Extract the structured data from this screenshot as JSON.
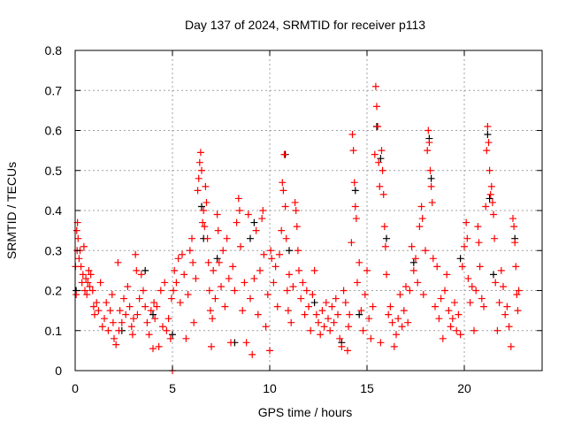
{
  "chart_data": {
    "type": "scatter",
    "title": "Day 137 of 2024, SRMTID for receiver p113",
    "xlabel": "GPS time / hours",
    "ylabel": "SRMTID / TECUs",
    "xlim": [
      0,
      24
    ],
    "ylim": [
      0,
      0.8
    ],
    "xticks": [
      0,
      5,
      10,
      15,
      20
    ],
    "yticks": [
      0,
      0.1,
      0.2,
      0.3,
      0.4,
      0.5,
      0.6,
      0.7,
      0.8
    ],
    "xtick_labels": [
      "0",
      "5",
      "10",
      "15",
      "20"
    ],
    "ytick_labels": [
      "0",
      "0.1",
      "0.2",
      "0.3",
      "0.4",
      "0.5",
      "0.6",
      "0.7",
      "0.8"
    ],
    "grid": true,
    "marker": "+",
    "series": [
      {
        "name": "black",
        "color": "#000000",
        "points": [
          [
            0.05,
            0.2
          ],
          [
            2.4,
            0.1
          ],
          [
            3.6,
            0.25
          ],
          [
            4.0,
            0.14
          ],
          [
            5.0,
            0.09
          ],
          [
            6.5,
            0.41
          ],
          [
            6.6,
            0.33
          ],
          [
            7.3,
            0.28
          ],
          [
            8.2,
            0.07
          ],
          [
            9.0,
            0.33
          ],
          [
            9.2,
            0.37
          ],
          [
            10.8,
            0.54
          ],
          [
            11.0,
            0.3
          ],
          [
            12.3,
            0.17
          ],
          [
            13.7,
            0.07
          ],
          [
            14.4,
            0.45
          ],
          [
            14.6,
            0.14
          ],
          [
            15.5,
            0.61
          ],
          [
            15.7,
            0.53
          ],
          [
            16.0,
            0.33
          ],
          [
            17.4,
            0.27
          ],
          [
            18.2,
            0.58
          ],
          [
            18.3,
            0.48
          ],
          [
            19.8,
            0.28
          ],
          [
            21.2,
            0.59
          ],
          [
            21.3,
            0.43
          ],
          [
            21.5,
            0.24
          ],
          [
            22.6,
            0.33
          ]
        ]
      },
      {
        "name": "red",
        "color": "#ff0000",
        "points": [
          [
            0.02,
            0.26
          ],
          [
            0.05,
            0.19
          ],
          [
            0.08,
            0.35
          ],
          [
            0.1,
            0.3
          ],
          [
            0.12,
            0.37
          ],
          [
            0.15,
            0.33
          ],
          [
            0.2,
            0.28
          ],
          [
            0.25,
            0.3
          ],
          [
            0.3,
            0.26
          ],
          [
            0.35,
            0.22
          ],
          [
            0.4,
            0.24
          ],
          [
            0.45,
            0.31
          ],
          [
            0.5,
            0.2
          ],
          [
            0.55,
            0.23
          ],
          [
            0.6,
            0.19
          ],
          [
            0.65,
            0.22
          ],
          [
            0.7,
            0.25
          ],
          [
            0.75,
            0.21
          ],
          [
            0.8,
            0.24
          ],
          [
            0.9,
            0.2
          ],
          [
            0.95,
            0.16
          ],
          [
            1.0,
            0.14
          ],
          [
            1.1,
            0.17
          ],
          [
            1.2,
            0.15
          ],
          [
            1.3,
            0.22
          ],
          [
            1.4,
            0.11
          ],
          [
            1.5,
            0.13
          ],
          [
            1.6,
            0.17
          ],
          [
            1.7,
            0.1
          ],
          [
            1.8,
            0.15
          ],
          [
            1.9,
            0.19
          ],
          [
            1.95,
            0.12
          ],
          [
            2.0,
            0.08
          ],
          [
            2.1,
            0.065
          ],
          [
            2.2,
            0.27
          ],
          [
            2.25,
            0.1
          ],
          [
            2.3,
            0.15
          ],
          [
            2.4,
            0.12
          ],
          [
            2.5,
            0.18
          ],
          [
            2.6,
            0.14
          ],
          [
            2.7,
            0.21
          ],
          [
            2.8,
            0.16
          ],
          [
            2.9,
            0.11
          ],
          [
            2.95,
            0.09
          ],
          [
            3.0,
            0.13
          ],
          [
            3.1,
            0.29
          ],
          [
            3.15,
            0.25
          ],
          [
            3.2,
            0.14
          ],
          [
            3.3,
            0.18
          ],
          [
            3.4,
            0.24
          ],
          [
            3.5,
            0.2
          ],
          [
            3.6,
            0.16
          ],
          [
            3.7,
            0.12
          ],
          [
            3.8,
            0.09
          ],
          [
            3.9,
            0.15
          ],
          [
            4.0,
            0.055
          ],
          [
            4.05,
            0.17
          ],
          [
            4.1,
            0.13
          ],
          [
            4.2,
            0.16
          ],
          [
            4.3,
            0.06
          ],
          [
            4.4,
            0.2
          ],
          [
            4.5,
            0.11
          ],
          [
            4.6,
            0.22
          ],
          [
            4.7,
            0.1
          ],
          [
            4.8,
            0.13
          ],
          [
            4.9,
            0.08
          ],
          [
            4.95,
            0.18
          ],
          [
            5.0,
            0.0
          ],
          [
            5.05,
            0.2
          ],
          [
            5.1,
            0.25
          ],
          [
            5.2,
            0.22
          ],
          [
            5.3,
            0.28
          ],
          [
            5.4,
            0.17
          ],
          [
            5.5,
            0.29
          ],
          [
            5.6,
            0.24
          ],
          [
            5.7,
            0.08
          ],
          [
            5.8,
            0.19
          ],
          [
            5.9,
            0.3
          ],
          [
            6.0,
            0.33
          ],
          [
            6.05,
            0.27
          ],
          [
            6.1,
            0.12
          ],
          [
            6.2,
            0.23
          ],
          [
            6.3,
            0.45
          ],
          [
            6.35,
            0.48
          ],
          [
            6.4,
            0.52
          ],
          [
            6.45,
            0.545
          ],
          [
            6.5,
            0.5
          ],
          [
            6.55,
            0.37
          ],
          [
            6.6,
            0.4
          ],
          [
            6.65,
            0.36
          ],
          [
            6.7,
            0.46
          ],
          [
            6.75,
            0.42
          ],
          [
            6.8,
            0.33
          ],
          [
            6.85,
            0.27
          ],
          [
            6.9,
            0.2
          ],
          [
            6.95,
            0.15
          ],
          [
            7.0,
            0.06
          ],
          [
            7.05,
            0.13
          ],
          [
            7.1,
            0.25
          ],
          [
            7.2,
            0.18
          ],
          [
            7.3,
            0.39
          ],
          [
            7.35,
            0.35
          ],
          [
            7.4,
            0.27
          ],
          [
            7.5,
            0.21
          ],
          [
            7.6,
            0.3
          ],
          [
            7.7,
            0.16
          ],
          [
            7.8,
            0.33
          ],
          [
            7.9,
            0.23
          ],
          [
            8.0,
            0.07
          ],
          [
            8.1,
            0.26
          ],
          [
            8.2,
            0.2
          ],
          [
            8.3,
            0.37
          ],
          [
            8.4,
            0.43
          ],
          [
            8.45,
            0.4
          ],
          [
            8.5,
            0.31
          ],
          [
            8.6,
            0.15
          ],
          [
            8.7,
            0.22
          ],
          [
            8.8,
            0.07
          ],
          [
            8.9,
            0.39
          ],
          [
            9.0,
            0.18
          ],
          [
            9.1,
            0.04
          ],
          [
            9.2,
            0.23
          ],
          [
            9.3,
            0.35
          ],
          [
            9.4,
            0.14
          ],
          [
            9.5,
            0.25
          ],
          [
            9.6,
            0.38
          ],
          [
            9.65,
            0.4
          ],
          [
            9.7,
            0.29
          ],
          [
            9.8,
            0.11
          ],
          [
            9.9,
            0.19
          ],
          [
            10.0,
            0.05
          ],
          [
            10.05,
            0.3
          ],
          [
            10.1,
            0.28
          ],
          [
            10.2,
            0.22
          ],
          [
            10.3,
            0.26
          ],
          [
            10.4,
            0.16
          ],
          [
            10.5,
            0.29
          ],
          [
            10.6,
            0.35
          ],
          [
            10.65,
            0.47
          ],
          [
            10.7,
            0.45
          ],
          [
            10.75,
            0.54
          ],
          [
            10.8,
            0.41
          ],
          [
            10.85,
            0.33
          ],
          [
            10.9,
            0.2
          ],
          [
            10.95,
            0.15
          ],
          [
            11.0,
            0.24
          ],
          [
            11.1,
            0.12
          ],
          [
            11.2,
            0.21
          ],
          [
            11.3,
            0.42
          ],
          [
            11.35,
            0.4
          ],
          [
            11.4,
            0.36
          ],
          [
            11.45,
            0.3
          ],
          [
            11.5,
            0.25
          ],
          [
            11.6,
            0.18
          ],
          [
            11.7,
            0.22
          ],
          [
            11.8,
            0.14
          ],
          [
            11.9,
            0.2
          ],
          [
            12.0,
            0.16
          ],
          [
            12.1,
            0.1
          ],
          [
            12.2,
            0.19
          ],
          [
            12.3,
            0.25
          ],
          [
            12.4,
            0.14
          ],
          [
            12.5,
            0.12
          ],
          [
            12.6,
            0.09
          ],
          [
            12.7,
            0.15
          ],
          [
            12.8,
            0.11
          ],
          [
            12.9,
            0.17
          ],
          [
            13.0,
            0.13
          ],
          [
            13.1,
            0.1
          ],
          [
            13.2,
            0.16
          ],
          [
            13.3,
            0.12
          ],
          [
            13.4,
            0.18
          ],
          [
            13.5,
            0.14
          ],
          [
            13.6,
            0.08
          ],
          [
            13.7,
            0.06
          ],
          [
            13.8,
            0.2
          ],
          [
            13.9,
            0.17
          ],
          [
            14.0,
            0.05
          ],
          [
            14.05,
            0.11
          ],
          [
            14.1,
            0.14
          ],
          [
            14.2,
            0.32
          ],
          [
            14.25,
            0.59
          ],
          [
            14.3,
            0.55
          ],
          [
            14.35,
            0.47
          ],
          [
            14.4,
            0.41
          ],
          [
            14.45,
            0.38
          ],
          [
            14.5,
            0.22
          ],
          [
            14.6,
            0.27
          ],
          [
            14.7,
            0.15
          ],
          [
            14.8,
            0.1
          ],
          [
            14.9,
            0.19
          ],
          [
            15.0,
            0.25
          ],
          [
            15.1,
            0.13
          ],
          [
            15.2,
            0.08
          ],
          [
            15.3,
            0.16
          ],
          [
            15.4,
            0.54
          ],
          [
            15.45,
            0.71
          ],
          [
            15.5,
            0.66
          ],
          [
            15.55,
            0.61
          ],
          [
            15.6,
            0.52
          ],
          [
            15.65,
            0.46
          ],
          [
            15.7,
            0.07
          ],
          [
            15.75,
            0.55
          ],
          [
            15.8,
            0.5
          ],
          [
            15.85,
            0.44
          ],
          [
            15.9,
            0.36
          ],
          [
            15.95,
            0.31
          ],
          [
            16.0,
            0.24
          ],
          [
            16.1,
            0.14
          ],
          [
            16.2,
            0.16
          ],
          [
            16.3,
            0.12
          ],
          [
            16.4,
            0.06
          ],
          [
            16.5,
            0.09
          ],
          [
            16.6,
            0.13
          ],
          [
            16.7,
            0.19
          ],
          [
            16.8,
            0.11
          ],
          [
            16.9,
            0.15
          ],
          [
            17.0,
            0.21
          ],
          [
            17.1,
            0.12
          ],
          [
            17.2,
            0.2
          ],
          [
            17.3,
            0.31
          ],
          [
            17.4,
            0.25
          ],
          [
            17.5,
            0.28
          ],
          [
            17.6,
            0.22
          ],
          [
            17.7,
            0.36
          ],
          [
            17.8,
            0.41
          ],
          [
            17.85,
            0.38
          ],
          [
            17.9,
            0.19
          ],
          [
            18.0,
            0.3
          ],
          [
            18.1,
            0.55
          ],
          [
            18.15,
            0.6
          ],
          [
            18.2,
            0.57
          ],
          [
            18.25,
            0.5
          ],
          [
            18.3,
            0.46
          ],
          [
            18.35,
            0.42
          ],
          [
            18.4,
            0.28
          ],
          [
            18.5,
            0.16
          ],
          [
            18.6,
            0.26
          ],
          [
            18.7,
            0.13
          ],
          [
            18.8,
            0.18
          ],
          [
            18.9,
            0.08
          ],
          [
            19.0,
            0.2
          ],
          [
            19.1,
            0.24
          ],
          [
            19.2,
            0.15
          ],
          [
            19.3,
            0.11
          ],
          [
            19.4,
            0.13
          ],
          [
            19.5,
            0.17
          ],
          [
            19.6,
            0.1
          ],
          [
            19.7,
            0.14
          ],
          [
            19.8,
            0.09
          ],
          [
            19.9,
            0.26
          ],
          [
            20.0,
            0.31
          ],
          [
            20.1,
            0.37
          ],
          [
            20.15,
            0.33
          ],
          [
            20.2,
            0.23
          ],
          [
            20.3,
            0.17
          ],
          [
            20.4,
            0.21
          ],
          [
            20.5,
            0.1
          ],
          [
            20.6,
            0.2
          ],
          [
            20.7,
            0.36
          ],
          [
            20.75,
            0.32
          ],
          [
            20.8,
            0.26
          ],
          [
            20.9,
            0.18
          ],
          [
            21.0,
            0.16
          ],
          [
            21.1,
            0.41
          ],
          [
            21.15,
            0.55
          ],
          [
            21.2,
            0.61
          ],
          [
            21.25,
            0.57
          ],
          [
            21.3,
            0.5
          ],
          [
            21.35,
            0.44
          ],
          [
            21.4,
            0.46
          ],
          [
            21.45,
            0.42
          ],
          [
            21.5,
            0.39
          ],
          [
            21.55,
            0.33
          ],
          [
            21.6,
            0.22
          ],
          [
            21.7,
            0.1
          ],
          [
            21.8,
            0.17
          ],
          [
            21.9,
            0.25
          ],
          [
            22.0,
            0.21
          ],
          [
            22.1,
            0.14
          ],
          [
            22.2,
            0.16
          ],
          [
            22.3,
            0.11
          ],
          [
            22.4,
            0.06
          ],
          [
            22.5,
            0.38
          ],
          [
            22.55,
            0.36
          ],
          [
            22.6,
            0.32
          ],
          [
            22.65,
            0.26
          ],
          [
            22.7,
            0.19
          ],
          [
            22.75,
            0.15
          ],
          [
            22.8,
            0.2
          ]
        ]
      }
    ]
  }
}
